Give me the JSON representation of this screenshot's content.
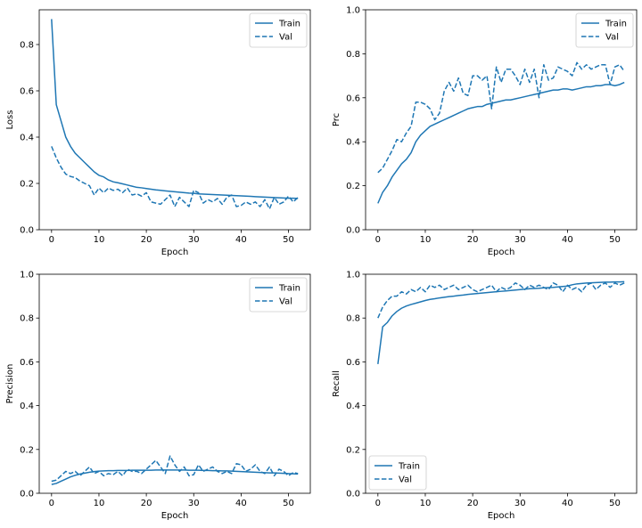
{
  "chart_data": [
    {
      "id": "loss",
      "type": "line",
      "xlabel": "Epoch",
      "ylabel": "Loss",
      "xlim": [
        -2.6,
        54.6
      ],
      "ylim": [
        0,
        0.95
      ],
      "xticks": [
        0,
        10,
        20,
        30,
        40,
        50
      ],
      "yticks": [
        0,
        0.2,
        0.4,
        0.6,
        0.8
      ],
      "ytick_labels": [
        "0.0",
        "0.2",
        "0.4",
        "0.6",
        "0.8"
      ],
      "legend_loc": "top-right",
      "series": [
        {
          "name": "Train",
          "style": "solid",
          "values": [
            0.91,
            0.54,
            0.47,
            0.4,
            0.36,
            0.33,
            0.31,
            0.29,
            0.27,
            0.25,
            0.235,
            0.228,
            0.215,
            0.207,
            0.203,
            0.198,
            0.193,
            0.188,
            0.183,
            0.181,
            0.178,
            0.175,
            0.172,
            0.17,
            0.168,
            0.166,
            0.164,
            0.162,
            0.16,
            0.158,
            0.157,
            0.155,
            0.154,
            0.153,
            0.152,
            0.151,
            0.15,
            0.149,
            0.148,
            0.147,
            0.146,
            0.145,
            0.144,
            0.143,
            0.142,
            0.141,
            0.14,
            0.139,
            0.138,
            0.137,
            0.136,
            0.136,
            0.135
          ]
        },
        {
          "name": "Val",
          "style": "dashed",
          "values": [
            0.36,
            0.31,
            0.27,
            0.24,
            0.23,
            0.225,
            0.21,
            0.2,
            0.19,
            0.15,
            0.18,
            0.16,
            0.18,
            0.17,
            0.175,
            0.16,
            0.18,
            0.15,
            0.155,
            0.145,
            0.16,
            0.12,
            0.115,
            0.11,
            0.13,
            0.15,
            0.1,
            0.14,
            0.12,
            0.1,
            0.17,
            0.16,
            0.115,
            0.13,
            0.12,
            0.135,
            0.11,
            0.14,
            0.15,
            0.1,
            0.105,
            0.12,
            0.11,
            0.12,
            0.1,
            0.13,
            0.09,
            0.14,
            0.11,
            0.12,
            0.145,
            0.12,
            0.14
          ]
        }
      ]
    },
    {
      "id": "prc",
      "type": "line",
      "xlabel": "Epoch",
      "ylabel": "Prc",
      "xlim": [
        -2.6,
        54.6
      ],
      "ylim": [
        0,
        1.0
      ],
      "xticks": [
        0,
        10,
        20,
        30,
        40,
        50
      ],
      "yticks": [
        0,
        0.2,
        0.4,
        0.6,
        0.8,
        1.0
      ],
      "ytick_labels": [
        "0.0",
        "0.2",
        "0.4",
        "0.6",
        "0.8",
        "1.0"
      ],
      "legend_loc": "top-right",
      "series": [
        {
          "name": "Train",
          "style": "solid",
          "values": [
            0.12,
            0.17,
            0.2,
            0.24,
            0.27,
            0.3,
            0.32,
            0.35,
            0.4,
            0.43,
            0.45,
            0.47,
            0.48,
            0.49,
            0.5,
            0.51,
            0.52,
            0.53,
            0.54,
            0.55,
            0.555,
            0.56,
            0.56,
            0.57,
            0.575,
            0.58,
            0.585,
            0.59,
            0.59,
            0.595,
            0.6,
            0.605,
            0.61,
            0.615,
            0.62,
            0.625,
            0.63,
            0.635,
            0.635,
            0.64,
            0.64,
            0.635,
            0.64,
            0.645,
            0.65,
            0.65,
            0.655,
            0.655,
            0.66,
            0.66,
            0.655,
            0.66,
            0.67
          ]
        },
        {
          "name": "Val",
          "style": "dashed",
          "values": [
            0.26,
            0.28,
            0.32,
            0.36,
            0.41,
            0.4,
            0.44,
            0.47,
            0.58,
            0.58,
            0.57,
            0.55,
            0.5,
            0.53,
            0.63,
            0.67,
            0.63,
            0.69,
            0.62,
            0.61,
            0.7,
            0.7,
            0.68,
            0.7,
            0.55,
            0.74,
            0.67,
            0.73,
            0.73,
            0.7,
            0.66,
            0.73,
            0.67,
            0.73,
            0.6,
            0.75,
            0.68,
            0.69,
            0.74,
            0.73,
            0.72,
            0.7,
            0.76,
            0.73,
            0.75,
            0.73,
            0.74,
            0.75,
            0.75,
            0.66,
            0.74,
            0.75,
            0.72
          ]
        }
      ]
    },
    {
      "id": "precision",
      "type": "line",
      "xlabel": "Epoch",
      "ylabel": "Precision",
      "xlim": [
        -2.6,
        54.6
      ],
      "ylim": [
        0,
        1.0
      ],
      "xticks": [
        0,
        10,
        20,
        30,
        40,
        50
      ],
      "yticks": [
        0,
        0.2,
        0.4,
        0.6,
        0.8,
        1.0
      ],
      "ytick_labels": [
        "0.0",
        "0.2",
        "0.4",
        "0.6",
        "0.8",
        "1.0"
      ],
      "legend_loc": "top-right",
      "series": [
        {
          "name": "Train",
          "style": "solid",
          "values": [
            0.04,
            0.045,
            0.055,
            0.065,
            0.075,
            0.082,
            0.088,
            0.092,
            0.096,
            0.099,
            0.101,
            0.102,
            0.103,
            0.103,
            0.104,
            0.104,
            0.104,
            0.105,
            0.105,
            0.105,
            0.105,
            0.105,
            0.106,
            0.106,
            0.106,
            0.106,
            0.106,
            0.106,
            0.106,
            0.105,
            0.105,
            0.105,
            0.104,
            0.104,
            0.103,
            0.103,
            0.102,
            0.102,
            0.101,
            0.1,
            0.099,
            0.098,
            0.097,
            0.096,
            0.095,
            0.094,
            0.093,
            0.093,
            0.092,
            0.091,
            0.09,
            0.089,
            0.088
          ]
        },
        {
          "name": "Val",
          "style": "dashed",
          "values": [
            0.055,
            0.06,
            0.08,
            0.1,
            0.09,
            0.1,
            0.08,
            0.1,
            0.12,
            0.09,
            0.1,
            0.08,
            0.09,
            0.085,
            0.1,
            0.08,
            0.11,
            0.1,
            0.1,
            0.09,
            0.11,
            0.13,
            0.15,
            0.12,
            0.09,
            0.17,
            0.13,
            0.1,
            0.12,
            0.08,
            0.085,
            0.13,
            0.1,
            0.11,
            0.12,
            0.1,
            0.09,
            0.1,
            0.09,
            0.135,
            0.13,
            0.1,
            0.11,
            0.13,
            0.1,
            0.09,
            0.12,
            0.08,
            0.11,
            0.1,
            0.08,
            0.095,
            0.09
          ]
        }
      ]
    },
    {
      "id": "recall",
      "type": "line",
      "xlabel": "Epoch",
      "ylabel": "Recall",
      "xlim": [
        -2.6,
        54.6
      ],
      "ylim": [
        0,
        1.0
      ],
      "xticks": [
        0,
        10,
        20,
        30,
        40,
        50
      ],
      "yticks": [
        0,
        0.2,
        0.4,
        0.6,
        0.8,
        1.0
      ],
      "ytick_labels": [
        "0.0",
        "0.2",
        "0.4",
        "0.6",
        "0.8",
        "1.0"
      ],
      "legend_loc": "bottom-left",
      "series": [
        {
          "name": "Train",
          "style": "solid",
          "values": [
            0.59,
            0.76,
            0.78,
            0.81,
            0.83,
            0.845,
            0.855,
            0.862,
            0.868,
            0.874,
            0.88,
            0.885,
            0.888,
            0.892,
            0.895,
            0.898,
            0.9,
            0.903,
            0.905,
            0.908,
            0.91,
            0.912,
            0.914,
            0.916,
            0.918,
            0.92,
            0.922,
            0.924,
            0.926,
            0.928,
            0.93,
            0.932,
            0.934,
            0.935,
            0.936,
            0.938,
            0.939,
            0.94,
            0.942,
            0.944,
            0.946,
            0.952,
            0.956,
            0.958,
            0.96,
            0.961,
            0.962,
            0.963,
            0.964,
            0.964,
            0.965,
            0.965,
            0.966
          ]
        },
        {
          "name": "Val",
          "style": "dashed",
          "values": [
            0.8,
            0.85,
            0.88,
            0.9,
            0.9,
            0.92,
            0.91,
            0.93,
            0.92,
            0.94,
            0.92,
            0.95,
            0.94,
            0.95,
            0.93,
            0.94,
            0.95,
            0.93,
            0.94,
            0.95,
            0.93,
            0.92,
            0.93,
            0.94,
            0.95,
            0.92,
            0.94,
            0.93,
            0.94,
            0.96,
            0.95,
            0.93,
            0.95,
            0.94,
            0.95,
            0.94,
            0.93,
            0.96,
            0.95,
            0.92,
            0.95,
            0.93,
            0.94,
            0.92,
            0.95,
            0.96,
            0.93,
            0.95,
            0.96,
            0.94,
            0.96,
            0.95,
            0.96
          ]
        }
      ]
    }
  ],
  "style": {
    "line_color": "#1f77b4",
    "axis_color": "#000000",
    "background": "#ffffff",
    "legend_border": "#cccccc"
  }
}
